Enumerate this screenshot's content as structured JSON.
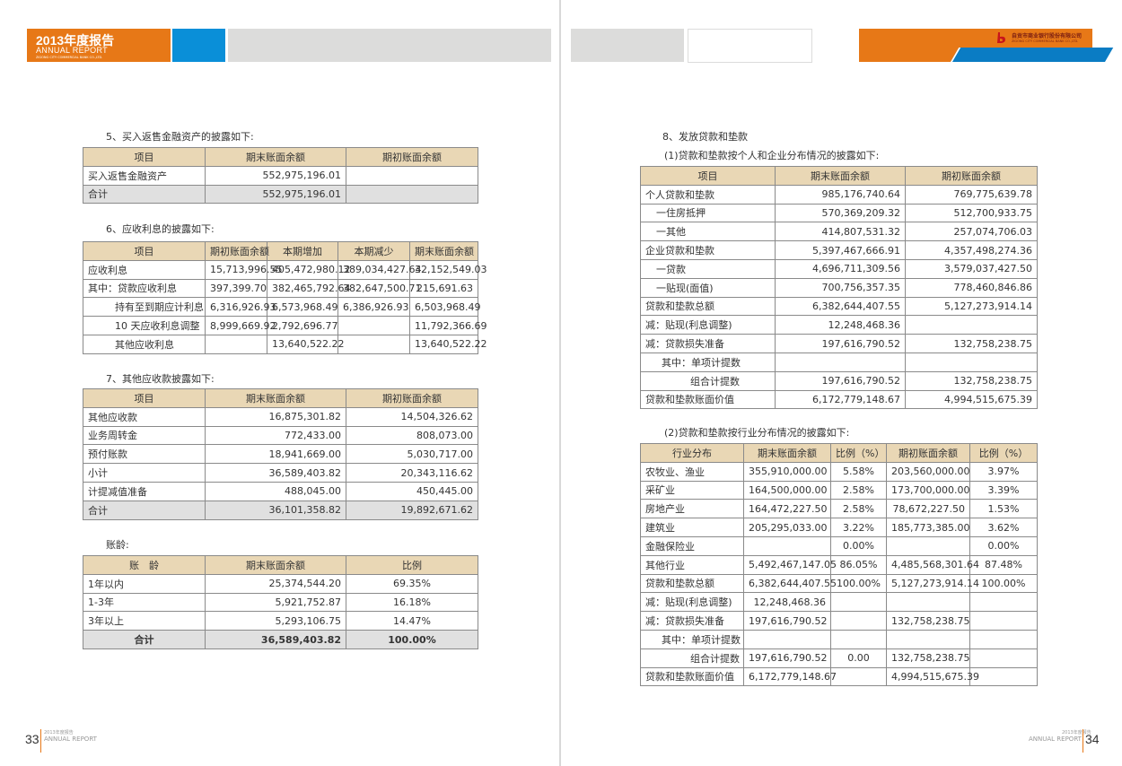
{
  "header": {
    "left_title": "2013年度报告",
    "left_subtitle": "ANNUAL REPORT",
    "left_company_en": "ZIGONG CITY COMMERCIAL BANK CO.,LTD.",
    "right_company_cn": "自贡市商业银行股份有限公司",
    "right_company_en": "ZIGONG CITY COMMERCIAL BANK CO.,LTD.",
    "colors": {
      "orange": "#e77817",
      "blue": "#0a8fd8",
      "gray": "#dcdcdb",
      "table_header": "#e9d7b5"
    }
  },
  "footer": {
    "left_page": "33",
    "right_page": "34",
    "label_small": "2013年度报告",
    "label": "ANNUAL REPORT"
  },
  "sections": {
    "s5": {
      "title": "5、买入返售金融资产的披露如下:",
      "headers": [
        "项目",
        "期末账面余额",
        "期初账面余额"
      ],
      "rows": [
        [
          "买入返售金融资产",
          "552,975,196.01",
          ""
        ],
        [
          "合计",
          "552,975,196.01",
          ""
        ]
      ]
    },
    "s6": {
      "title": "6、应收利息的披露如下:",
      "headers": [
        "项目",
        "期初账面余额",
        "本期增加",
        "本期减少",
        "期末账面余额"
      ],
      "rows": [
        [
          "应收利息",
          "15,713,996.55",
          "405,472,980.12",
          "389,034,427.64",
          "32,152,549.03"
        ],
        [
          "其中：贷款应收利息",
          "397,399.70",
          "382,465,792.64",
          "382,647,500.71",
          "215,691.63"
        ],
        [
          "持有至到期应计利息",
          "6,316,926.93",
          "6,573,968.49",
          "6,386,926.93",
          "6,503,968.49"
        ],
        [
          "10 天应收利息调整",
          "8,999,669.92",
          "2,792,696.77",
          "",
          "11,792,366.69"
        ],
        [
          "其他应收利息",
          "",
          "13,640,522.22",
          "",
          "13,640,522.22"
        ]
      ]
    },
    "s7": {
      "title": "7、其他应收款披露如下:",
      "headers": [
        "项目",
        "期末账面余额",
        "期初账面余额"
      ],
      "rows": [
        [
          "其他应收款",
          "16,875,301.82",
          "14,504,326.62"
        ],
        [
          "业务周转金",
          "772,433.00",
          "808,073.00"
        ],
        [
          "预付账款",
          "18,941,669.00",
          "5,030,717.00"
        ],
        [
          "小计",
          "36,589,403.82",
          "20,343,116.62"
        ],
        [
          "计提减值准备",
          "488,045.00",
          "450,445.00"
        ],
        [
          "合计",
          "36,101,358.82",
          "19,892,671.62"
        ]
      ]
    },
    "aging": {
      "title": "账龄:",
      "headers": [
        "账　龄",
        "期末账面余额",
        "比例"
      ],
      "rows": [
        [
          "1年以内",
          "25,374,544.20",
          "69.35%"
        ],
        [
          "1-3年",
          "5,921,752.87",
          "16.18%"
        ],
        [
          "3年以上",
          "5,293,106.75",
          "14.47%"
        ],
        [
          "合计",
          "36,589,403.82",
          "100.00%"
        ]
      ]
    },
    "s8": {
      "title": "8、发放贷款和垫款",
      "subtitle": "(1)贷款和垫款按个人和企业分布情况的披露如下:",
      "headers": [
        "项目",
        "期末账面余额",
        "期初账面余额"
      ],
      "rows": [
        [
          "个人贷款和垫款",
          "985,176,740.64",
          "769,775,639.78"
        ],
        [
          "一住房抵押",
          "570,369,209.32",
          "512,700,933.75"
        ],
        [
          "一其他",
          "414,807,531.32",
          "257,074,706.03"
        ],
        [
          "企业贷款和垫款",
          "5,397,467,666.91",
          "4,357,498,274.36"
        ],
        [
          "一贷款",
          "4,696,711,309.56",
          "3,579,037,427.50"
        ],
        [
          "一贴现(面值)",
          "700,756,357.35",
          "778,460,846.86"
        ],
        [
          "贷款和垫款总额",
          "6,382,644,407.55",
          "5,127,273,914.14"
        ],
        [
          "减：贴现(利息调整)",
          "12,248,468.36",
          ""
        ],
        [
          "减：贷款损失准备",
          "197,616,790.52",
          "132,758,238.75"
        ],
        [
          "其中：单项计提数",
          "",
          ""
        ],
        [
          "组合计提数",
          "197,616,790.52",
          "132,758,238.75"
        ],
        [
          "贷款和垫款账面价值",
          "6,172,779,148.67",
          "4,994,515,675.39"
        ]
      ]
    },
    "s8b": {
      "subtitle": "(2)贷款和垫款按行业分布情况的披露如下:",
      "headers": [
        "行业分布",
        "期末账面余额",
        "比例（%）",
        "期初账面余额",
        "比例（%）"
      ],
      "rows": [
        [
          "农牧业、渔业",
          "355,910,000.00",
          "5.58%",
          "203,560,000.00",
          "3.97%"
        ],
        [
          "采矿业",
          "164,500,000.00",
          "2.58%",
          "173,700,000.00",
          "3.39%"
        ],
        [
          "房地产业",
          "164,472,227.50",
          "2.58%",
          "78,672,227.50",
          "1.53%"
        ],
        [
          "建筑业",
          "205,295,033.00",
          "3.22%",
          "185,773,385.00",
          "3.62%"
        ],
        [
          "金融保险业",
          "",
          "0.00%",
          "",
          "0.00%"
        ],
        [
          "其他行业",
          "5,492,467,147.05",
          "86.05%",
          "4,485,568,301.64",
          "87.48%"
        ],
        [
          "贷款和垫款总额",
          "6,382,644,407.55",
          "100.00%",
          "5,127,273,914.14",
          "100.00%"
        ],
        [
          "减：贴现(利息调整)",
          "12,248,468.36",
          "",
          "",
          ""
        ],
        [
          "减：贷款损失准备",
          "197,616,790.52",
          "",
          "132,758,238.75",
          ""
        ],
        [
          "其中：单项计提数",
          "",
          "",
          "",
          ""
        ],
        [
          "组合计提数",
          "197,616,790.52",
          "0.00",
          "132,758,238.75",
          ""
        ],
        [
          "贷款和垫款账面价值",
          "6,172,779,148.67",
          "",
          "4,994,515,675.39",
          ""
        ]
      ]
    }
  }
}
